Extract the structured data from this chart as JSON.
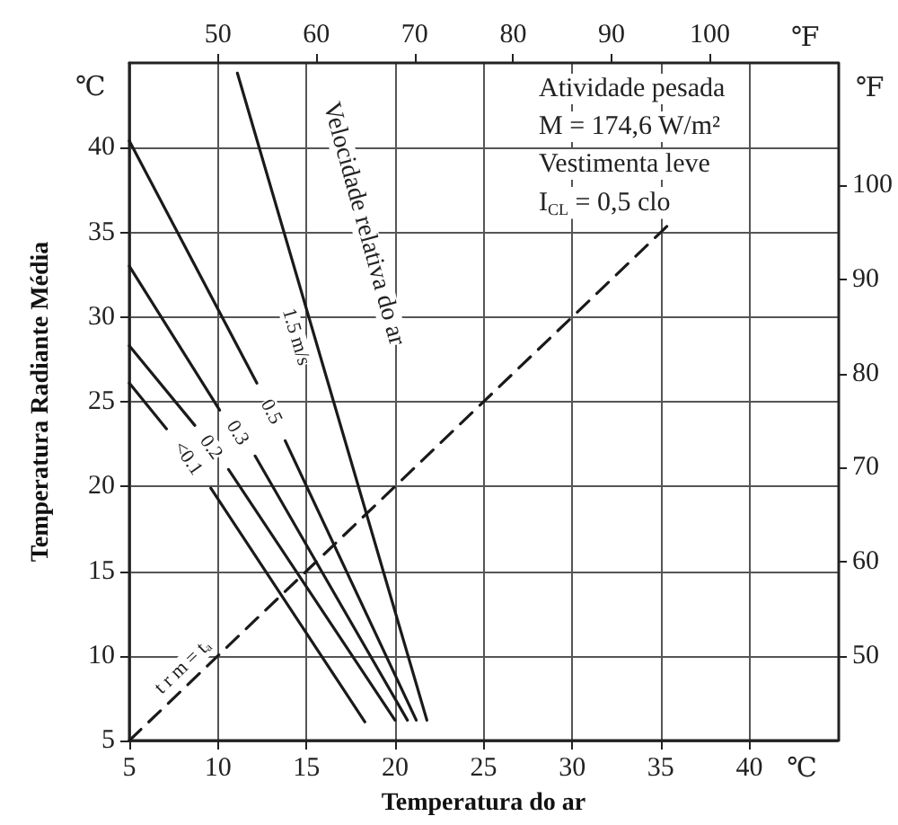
{
  "chart_data": {
    "type": "line",
    "xlabel": "Temperatura do ar",
    "ylabel": "Temperatura Radiante Média",
    "x2label": "℉",
    "y2label": "℉",
    "annotations": [
      "Atividade pesada",
      "M = 174,6 W/m²",
      "Vestimenta leve",
      "I$_{CL}$ = 0,5 clo",
      "Velocidade relativa do ar",
      "℃",
      "℃"
    ],
    "series": [
      {
        "name": "<0.1",
        "color": "#1a1a1a",
        "x": [
          5,
          7.1,
          8.3,
          9.6,
          18.3
        ],
        "values": [
          26.1,
          23.4,
          null,
          19.9,
          6.1
        ]
      },
      {
        "name": "0.2",
        "color": "#1a1a1a",
        "x": [
          5,
          8.7,
          9.6,
          10.6,
          20.0
        ],
        "values": [
          28.3,
          23.6,
          null,
          21.0,
          6.2
        ]
      },
      {
        "name": "0.3",
        "color": "#1a1a1a",
        "x": [
          5,
          10.1,
          11.1,
          12.1,
          20.7
        ],
        "values": [
          33.0,
          24.5,
          null,
          21.8,
          6.2
        ]
      },
      {
        "name": "0.5",
        "color": "#1a1a1a",
        "x": [
          5,
          12.2,
          13.0,
          13.8,
          21.2
        ],
        "values": [
          40.4,
          26.1,
          null,
          22.7,
          6.2
        ]
      },
      {
        "name": "1.5 m/s",
        "color": "#1a1a1a",
        "x": [
          11.1,
          21.8
        ],
        "values": [
          44.4,
          6.2
        ]
      },
      {
        "name": "t r m = t$_{a}$",
        "color": "#1a1a1a",
        "line_style": "dashed",
        "x": [
          5,
          35.5
        ],
        "values": [
          5,
          35.5
        ]
      }
    ],
    "xlim": [
      5,
      45
    ],
    "xticks": [
      5,
      10,
      15,
      20,
      25,
      30,
      35,
      40
    ],
    "ylim": [
      5,
      45
    ],
    "yticks": [
      5,
      10,
      15,
      20,
      25,
      30,
      35,
      40
    ],
    "x2lim": [
      41,
      113
    ],
    "x2ticks": [
      50,
      60,
      70,
      80,
      90,
      100
    ],
    "y2lim": [
      41,
      113
    ],
    "y2ticks": [
      50,
      60,
      70,
      80,
      90,
      100
    ],
    "grid": true,
    "legend": false,
    "marker": "none",
    "line_style": "solid"
  }
}
